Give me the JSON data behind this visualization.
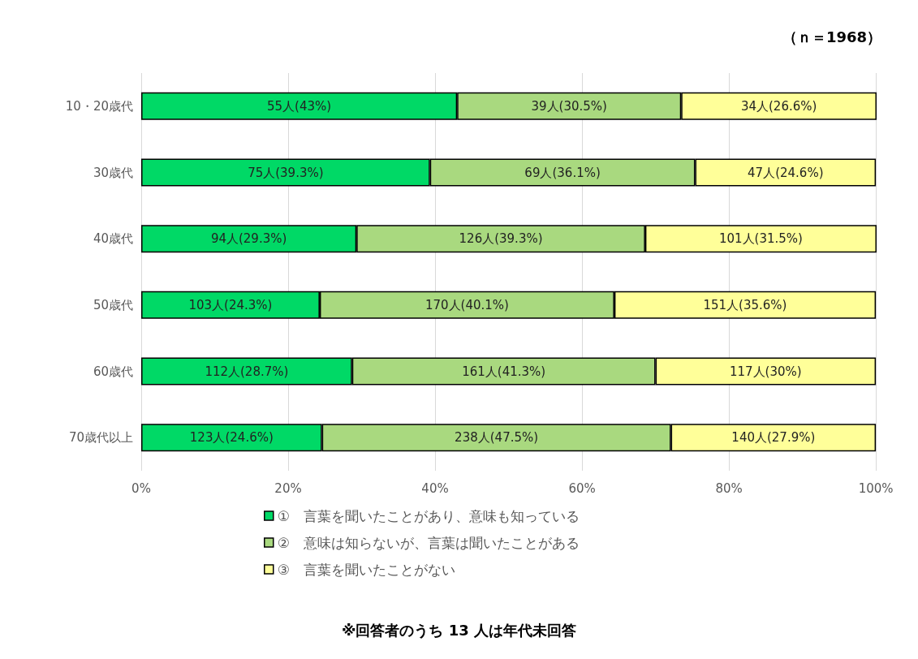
{
  "chart_data": {
    "type": "bar",
    "orientation": "horizontal",
    "stacked": true,
    "categories": [
      "10・20歳代",
      "30歳代",
      "40歳代",
      "50歳代",
      "60歳代",
      "70歳代以上"
    ],
    "series": [
      {
        "name": "①　言葉を聞いたことがあり、意味も知っている",
        "color": "#00d966",
        "values": [
          43,
          39.3,
          29.3,
          24.3,
          28.7,
          24.6
        ],
        "value_labels": [
          "55人(43%)",
          "75人(39.3%)",
          "94人(29.3%)",
          "103人(24.3%)",
          "112人(28.7%)",
          "123人(24.6%)"
        ]
      },
      {
        "name": "②　意味は知らないが、言葉は聞いたことがある",
        "color": "#a9d97f",
        "values": [
          30.5,
          36.1,
          39.3,
          40.1,
          41.3,
          47.5
        ],
        "value_labels": [
          "39人(30.5%)",
          "69人(36.1%)",
          "126人(39.3%)",
          "170人(40.1%)",
          "161人(41.3%)",
          "238人(47.5%)"
        ]
      },
      {
        "name": "③　言葉を聞いたことがない",
        "color": "#ffff99",
        "values": [
          26.6,
          24.6,
          31.5,
          35.6,
          30,
          27.9
        ],
        "value_labels": [
          "34人(26.6%)",
          "47人(24.6%)",
          "101人(31.5%)",
          "151人(35.6%)",
          "117人(30%)",
          "140人(27.9%)"
        ]
      }
    ],
    "xlim": [
      0,
      100.1
    ],
    "xticks": [
      {
        "value": 0,
        "label": "0%"
      },
      {
        "value": 20,
        "label": "20%"
      },
      {
        "value": 40,
        "label": "40%"
      },
      {
        "value": 60,
        "label": "60%"
      },
      {
        "value": 80,
        "label": "80%"
      },
      {
        "value": 100,
        "label": "100%"
      }
    ],
    "grid": "x",
    "legend": "bottom",
    "annotations": [
      "（ｎ＝1968）",
      "※回答者のうち 13 人は年代未回答"
    ]
  }
}
